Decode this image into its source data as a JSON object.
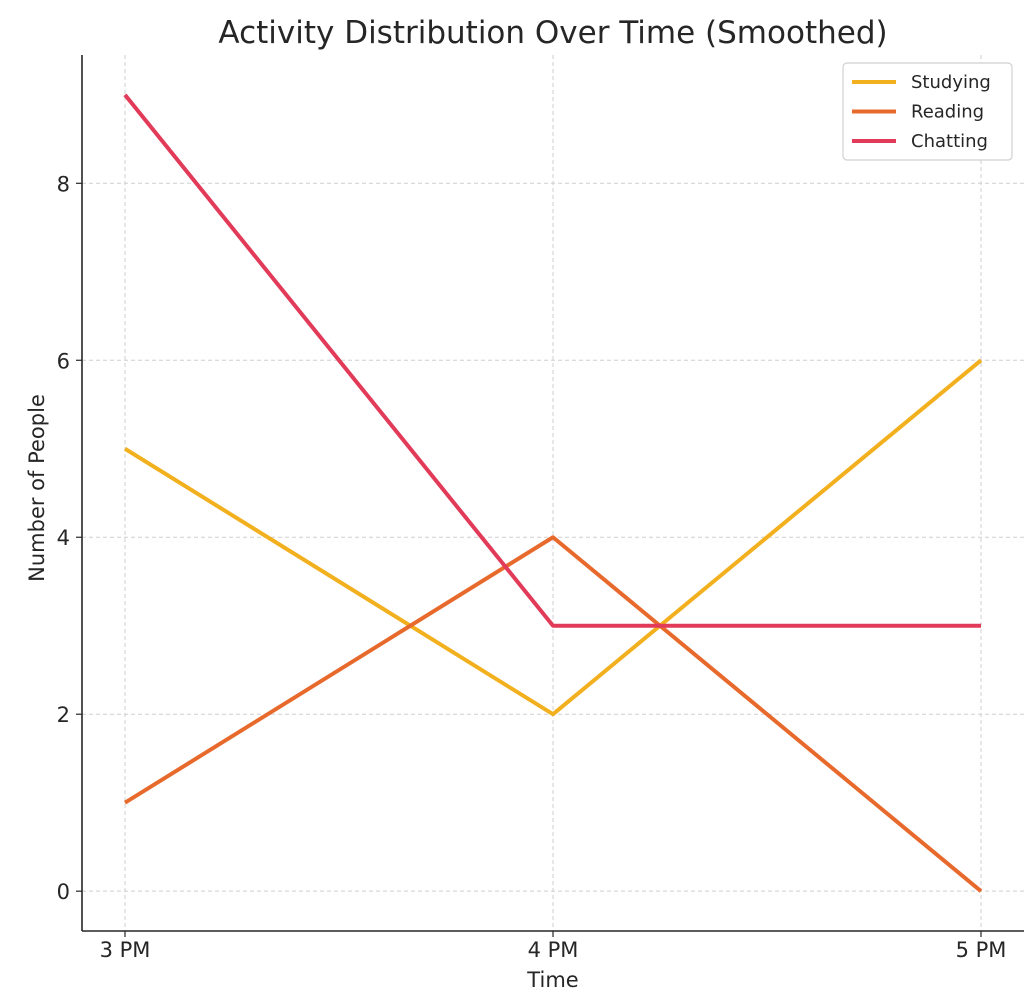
{
  "chart_data": {
    "type": "line",
    "title": "Activity Distribution Over Time (Smoothed)",
    "xlabel": "Time",
    "ylabel": "Number of People",
    "categories": [
      "3 PM",
      "4 PM",
      "5 PM"
    ],
    "ylim": [
      -0.45,
      9.45
    ],
    "yticks": [
      0,
      2,
      4,
      6,
      8
    ],
    "grid": true,
    "legend_position": "top-right",
    "series": [
      {
        "name": "Studying",
        "color": "#f2b01e",
        "values": [
          5,
          2,
          6
        ]
      },
      {
        "name": "Reading",
        "color": "#e8692c",
        "values": [
          1,
          4,
          0
        ]
      },
      {
        "name": "Chatting",
        "color": "#e23b5a",
        "values": [
          9,
          3,
          3
        ]
      }
    ]
  }
}
